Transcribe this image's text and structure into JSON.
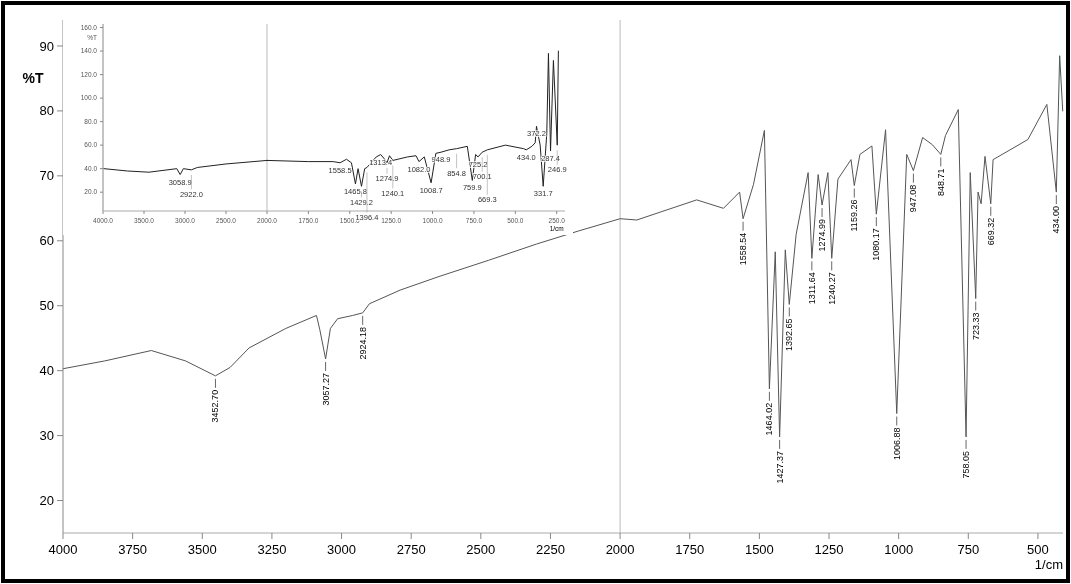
{
  "chart_data": [
    {
      "type": "line",
      "xlabel": "1/cm",
      "ylabel": "%T",
      "color": "#555555",
      "x": [
        4000,
        3850,
        3683,
        3560,
        3452.7,
        3400,
        3332,
        3200,
        3090,
        3078,
        3057.27,
        3040,
        3014,
        2960,
        2924.18,
        2900,
        2790,
        2650,
        2472,
        2300,
        2150,
        2000,
        1940,
        1850,
        1725,
        1629,
        1571,
        1558.54,
        1521,
        1482,
        1464.02,
        1443,
        1427.37,
        1407,
        1392.65,
        1368,
        1325,
        1311.64,
        1289,
        1274.99,
        1254,
        1240.27,
        1218,
        1171,
        1159.26,
        1139,
        1096,
        1080.17,
        1047,
        1006.88,
        971,
        947.08,
        914,
        879,
        848.71,
        832,
        786,
        758.05,
        743,
        723.33,
        715,
        704,
        690,
        669.32,
        661,
        600,
        536,
        468,
        434,
        422,
        411
      ],
      "values": [
        40.3,
        41.5,
        43.1,
        41.5,
        39.2,
        40.5,
        43.5,
        46.5,
        48.5,
        46.3,
        41.8,
        46.5,
        48,
        48.5,
        48.9,
        50.3,
        52.4,
        54.5,
        57,
        59.5,
        61.5,
        63.4,
        63.2,
        64.5,
        66.3,
        65,
        67.5,
        63.4,
        68.7,
        77,
        37.2,
        58.3,
        29.8,
        58.6,
        50.2,
        61,
        70.5,
        57.3,
        70.2,
        65.5,
        70.5,
        57.3,
        69.5,
        72.5,
        68.5,
        73.3,
        74.6,
        64.1,
        77.1,
        33.4,
        73.3,
        70.8,
        75.9,
        74.8,
        73.3,
        76.2,
        80.2,
        29.8,
        70.5,
        51.1,
        67.5,
        65.7,
        73,
        65.7,
        72.5,
        74,
        75.6,
        81,
        67.5,
        88.5,
        80
      ],
      "xlim": [
        4000,
        410
      ],
      "ylim": [
        15,
        94
      ],
      "xticks": [
        4000,
        3750,
        3500,
        3250,
        3000,
        2750,
        2500,
        2250,
        2000,
        1750,
        1500,
        1250,
        1000,
        750,
        500
      ],
      "yticks": [
        20,
        30,
        40,
        50,
        60,
        70,
        80,
        90
      ],
      "ref_lines": [
        {
          "axis": "x",
          "value": 2000,
          "color": "#bbbbbb"
        }
      ],
      "annotations": [
        {
          "text": "3452.70",
          "x": 3452.7,
          "y": 39.2
        },
        {
          "text": "3057.27",
          "x": 3057.27,
          "y": 41.8
        },
        {
          "text": "2924.18",
          "x": 2924.18,
          "y": 48.9
        },
        {
          "text": "1558.54",
          "x": 1558.54,
          "y": 63.4
        },
        {
          "text": "1464.02",
          "x": 1464.02,
          "y": 37.2
        },
        {
          "text": "1427.37",
          "x": 1427.37,
          "y": 29.8
        },
        {
          "text": "1392.65",
          "x": 1392.65,
          "y": 50.2
        },
        {
          "text": "1311.64",
          "x": 1311.64,
          "y": 57.3
        },
        {
          "text": "1274.99",
          "x": 1274.99,
          "y": 65.5
        },
        {
          "text": "1240.27",
          "x": 1240.27,
          "y": 57.3
        },
        {
          "text": "1159.26",
          "x": 1159.26,
          "y": 68.5
        },
        {
          "text": "1080.17",
          "x": 1080.17,
          "y": 64.1
        },
        {
          "text": "1006.88",
          "x": 1006.88,
          "y": 33.4
        },
        {
          "text": "947.08",
          "x": 947.08,
          "y": 70.8
        },
        {
          "text": "848.71",
          "x": 848.71,
          "y": 73.3
        },
        {
          "text": "758.05",
          "x": 758.05,
          "y": 29.8
        },
        {
          "text": "723.33",
          "x": 723.33,
          "y": 51.1
        },
        {
          "text": "669.32",
          "x": 669.32,
          "y": 65.7
        },
        {
          "text": "434.00",
          "x": 434,
          "y": 67.5
        }
      ]
    },
    {
      "type": "line",
      "ylabel": "%T",
      "color": "#222222",
      "x": [
        3990,
        3700,
        3440,
        3100,
        3058.9,
        3020,
        2922,
        2850,
        2500,
        2000
      ],
      "values": [
        40,
        38,
        37,
        40,
        35,
        40,
        39,
        41,
        44,
        47
      ],
      "xlim": [
        4000,
        2000
      ],
      "ylim": [
        4,
        163
      ],
      "ref_lines": [
        {
          "axis": "x",
          "value": 2000,
          "color": "#bbbbbb"
        }
      ],
      "xticks": [
        {
          "value": 4000,
          "label": "4000.0"
        },
        {
          "value": 3500,
          "label": "3500.0"
        },
        {
          "value": 3000,
          "label": "3000.0"
        },
        {
          "value": 2500,
          "label": "2500.0"
        }
      ],
      "yticks": [
        {
          "value": 20,
          "label": "20.0"
        },
        {
          "value": 40,
          "label": "40.0"
        },
        {
          "value": 60,
          "label": "60.0"
        },
        {
          "value": 80,
          "label": "80.0"
        },
        {
          "value": 100,
          "label": "100.0"
        },
        {
          "value": 120,
          "label": "120.0"
        },
        {
          "value": 140,
          "label": "140.0"
        },
        {
          "value": 160,
          "label": "160.0"
        }
      ],
      "annotations": [
        {
          "text": "3058.9",
          "x": 3058.9,
          "y": 35
        },
        {
          "text": "2922.0",
          "x": 2922,
          "y": 39
        }
      ]
    },
    {
      "type": "line",
      "xlabel": "1/cm",
      "color": "#222222",
      "tick_labels": "x",
      "x": [
        2000,
        1750,
        1600,
        1558.5,
        1520,
        1490,
        1465.8,
        1450,
        1429.2,
        1410,
        1396.4,
        1340,
        1313.4,
        1295,
        1274.9,
        1260,
        1240.1,
        1150,
        1100,
        1082,
        1050,
        1008.7,
        980,
        948.9,
        900,
        854.8,
        790,
        759.9,
        740,
        725.2,
        700.1,
        669.3,
        560,
        450,
        434,
        400,
        380,
        372.2,
        350,
        331.7,
        310,
        300,
        287.4,
        270,
        246.9,
        240
      ],
      "values": [
        47,
        46,
        46,
        45,
        48,
        45,
        27,
        40,
        25,
        40,
        41,
        50,
        52,
        49,
        45,
        51,
        47,
        50,
        51,
        46,
        50,
        28,
        53,
        54,
        56,
        57,
        59,
        30,
        52,
        50,
        54,
        56,
        60,
        57,
        56,
        59,
        62,
        76,
        60,
        25,
        70,
        138,
        55,
        132,
        60,
        140
      ],
      "xlim": [
        2000,
        200
      ],
      "ylim": [
        4,
        163
      ],
      "xticks": [
        {
          "value": 2000,
          "label": "2000.0"
        },
        {
          "value": 1750,
          "label": "1750.0"
        },
        {
          "value": 1500,
          "label": "1500.0"
        },
        {
          "value": 1250,
          "label": "1250.0"
        },
        {
          "value": 1000,
          "label": "1000.0"
        },
        {
          "value": 750,
          "label": "750.0"
        },
        {
          "value": 500,
          "label": "500.0"
        },
        {
          "value": 250,
          "label": "250.0"
        }
      ],
      "annotations": [
        {
          "text": "1558.5",
          "x": 1558.5,
          "y": 45
        },
        {
          "text": "1465.8",
          "x": 1465.8,
          "y": 27
        },
        {
          "text": "1429.2",
          "x": 1429.2,
          "y": 25
        },
        {
          "text": "1396.4",
          "x": 1396.4,
          "y": 41
        },
        {
          "text": "1313.4",
          "x": 1313.4,
          "y": 52
        },
        {
          "text": "1274.9",
          "x": 1274.9,
          "y": 45
        },
        {
          "text": "1240.1",
          "x": 1240.1,
          "y": 47
        },
        {
          "text": "1082.0",
          "x": 1082,
          "y": 46
        },
        {
          "text": "1008.7",
          "x": 1008.7,
          "y": 28
        },
        {
          "text": "948.9",
          "x": 948.9,
          "y": 54
        },
        {
          "text": "854.8",
          "x": 854.8,
          "y": 57
        },
        {
          "text": "759.9",
          "x": 759.9,
          "y": 30
        },
        {
          "text": "725.2",
          "x": 725.2,
          "y": 50
        },
        {
          "text": "700.1",
          "x": 700.1,
          "y": 54
        },
        {
          "text": "669.3",
          "x": 669.3,
          "y": 56
        },
        {
          "text": "434.0",
          "x": 434,
          "y": 56
        },
        {
          "text": "372.2",
          "x": 372.2,
          "y": 76
        },
        {
          "text": "331.7",
          "x": 331.7,
          "y": 25
        },
        {
          "text": "287.4",
          "x": 287.4,
          "y": 55
        },
        {
          "text": "246.9",
          "x": 246.9,
          "y": 60
        }
      ]
    }
  ]
}
